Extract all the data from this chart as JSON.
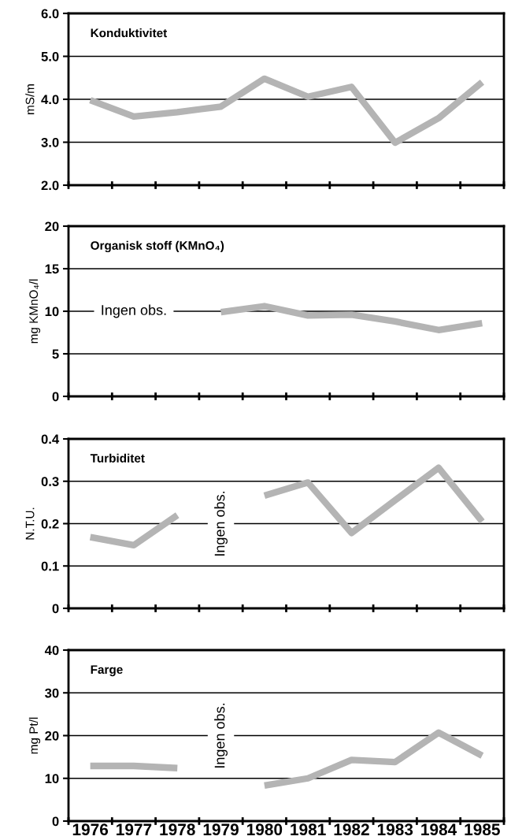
{
  "chart_data": [
    {
      "type": "line",
      "title": "Konduktivitet",
      "ylabel": "mS/m",
      "categories": [
        "1976",
        "1977",
        "1978",
        "1979",
        "1980",
        "1981",
        "1982",
        "1983",
        "1984",
        "1985"
      ],
      "series": [
        {
          "color": "#b4b4b4",
          "values": [
            3.98,
            3.6,
            3.7,
            3.83,
            4.48,
            4.06,
            4.29,
            2.99,
            3.56,
            4.4
          ]
        }
      ],
      "ylim": [
        2.0,
        6.0
      ],
      "yticks": [
        {
          "value": 2.0,
          "label": "2.0"
        },
        {
          "value": 3.0,
          "label": "3.0"
        },
        {
          "value": 4.0,
          "label": "4.0"
        },
        {
          "value": 5.0,
          "label": "5.0"
        },
        {
          "value": 6.0,
          "label": "6.0"
        }
      ],
      "grid": "y",
      "tick_labels": "y"
    },
    {
      "type": "line",
      "title": "Organisk stoff (KMnO₄)",
      "ylabel": "mg KMnO₄/l",
      "categories": [
        "1976",
        "1977",
        "1978",
        "1979",
        "1980",
        "1981",
        "1982",
        "1983",
        "1984",
        "1985"
      ],
      "series": [
        {
          "color": "#b4b4b4",
          "values": [
            null,
            null,
            null,
            9.9,
            10.6,
            9.5,
            9.6,
            8.8,
            7.8,
            8.6
          ]
        }
      ],
      "annotations": [
        "Ingen obs."
      ],
      "ylim": [
        0,
        20
      ],
      "yticks": [
        0,
        5,
        10,
        15,
        20
      ],
      "grid": "y",
      "tick_labels": "y"
    },
    {
      "type": "line",
      "title": "Turbiditet",
      "ylabel": "N.T.U.",
      "categories": [
        "1976",
        "1977",
        "1978",
        "1979",
        "1980",
        "1981",
        "1982",
        "1983",
        "1984",
        "1985"
      ],
      "series": [
        {
          "color": "#b4b4b4",
          "values": [
            0.168,
            0.149,
            0.22,
            null,
            0.266,
            0.297,
            0.178,
            0.255,
            0.332,
            0.205
          ]
        }
      ],
      "annotations": [
        "Ingen obs."
      ],
      "ylim": [
        0,
        0.4
      ],
      "yticks": [
        0,
        0.1,
        0.2,
        0.3,
        0.4
      ],
      "grid": "y",
      "tick_labels": "y"
    },
    {
      "type": "line",
      "title": "Farge",
      "ylabel": "mg Pt/l",
      "categories": [
        "1976",
        "1977",
        "1978",
        "1979",
        "1980",
        "1981",
        "1982",
        "1983",
        "1984",
        "1985"
      ],
      "series": [
        {
          "color": "#b4b4b4",
          "values": [
            12.9,
            12.9,
            12.4,
            null,
            8.3,
            10.0,
            14.3,
            13.8,
            20.7,
            15.3
          ]
        }
      ],
      "annotations": [
        "Ingen obs."
      ],
      "ylim": [
        0,
        40
      ],
      "yticks": [
        0,
        10,
        20,
        30,
        40
      ],
      "grid": "y"
    }
  ]
}
